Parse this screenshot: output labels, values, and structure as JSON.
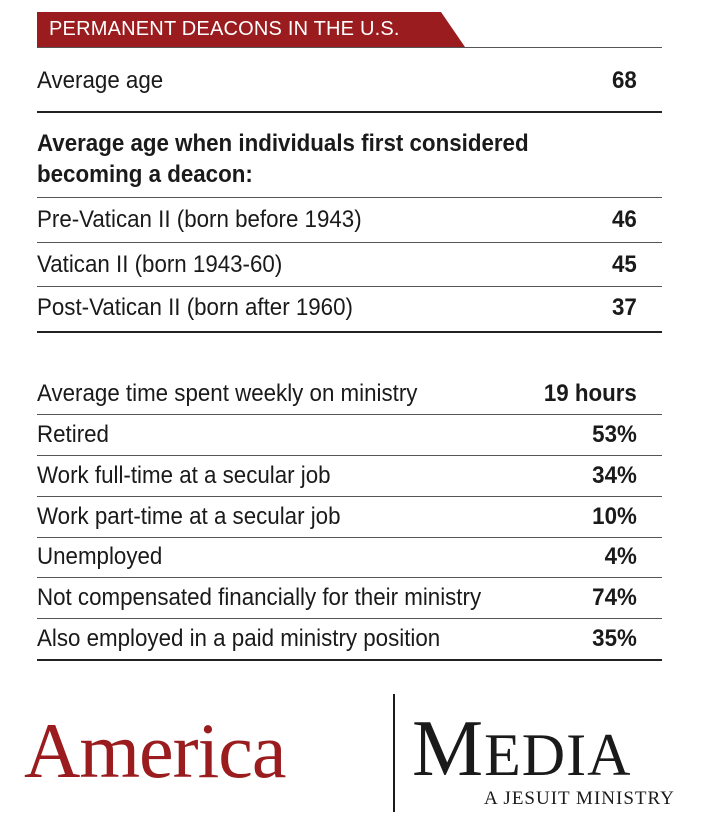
{
  "banner": {
    "title": "PERMANENT DEACONS IN THE U.S."
  },
  "average_age": {
    "label": "Average age",
    "value": "68"
  },
  "first_considered": {
    "heading": "Average age when individuals first considered becoming a deacon:",
    "rows": [
      {
        "label": "Pre-Vatican II (born before 1943)",
        "value": "46"
      },
      {
        "label": "Vatican II (born 1943-60)",
        "value": "45"
      },
      {
        "label": "Post-Vatican II (born after 1960)",
        "value": "37"
      }
    ]
  },
  "ministry": {
    "rows": [
      {
        "label": "Average time spent weekly on ministry",
        "value": "19 hours"
      },
      {
        "label": "Retired",
        "value": "53%"
      },
      {
        "label": "Work full-time at a secular job",
        "value": "34%"
      },
      {
        "label": "Work part-time at a secular job",
        "value": "10%"
      },
      {
        "label": "Unemployed",
        "value": "4%"
      },
      {
        "label": "Not compensated financially for their ministry",
        "value": "74%"
      },
      {
        "label": "Also employed in a paid ministry position",
        "value": "35%"
      }
    ]
  },
  "logo": {
    "america": "America",
    "media_initial": "M",
    "media_rest": "EDIA",
    "tagline": "A JESUIT MINISTRY",
    "brand_color": "#9b1c1f"
  }
}
